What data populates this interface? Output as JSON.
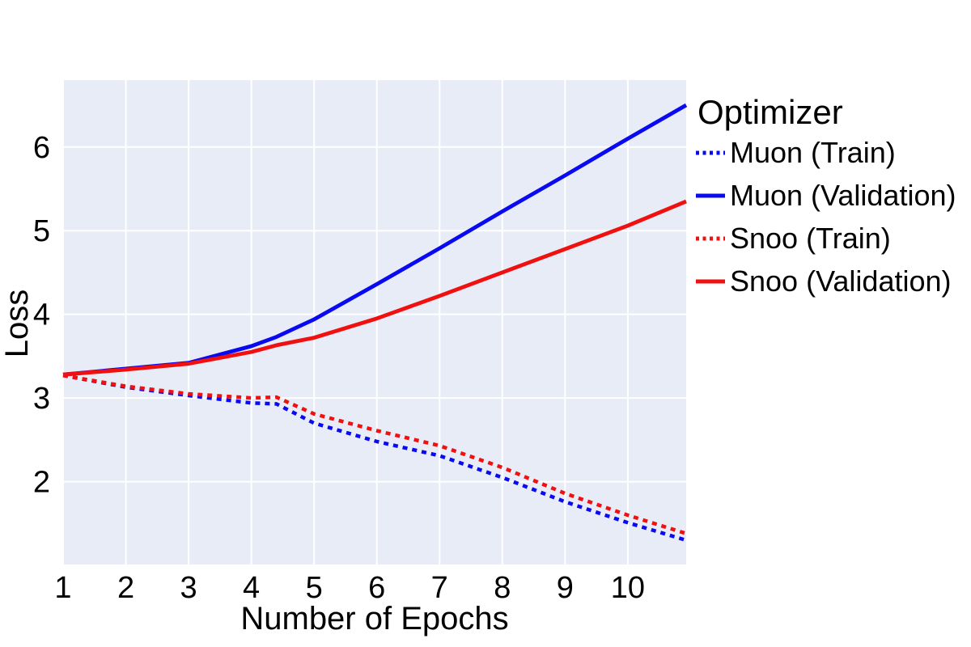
{
  "figure": {
    "background": "#ffffff",
    "plot_background": "#e8ecf6",
    "grid_color": "#ffffff"
  },
  "chart_data": {
    "type": "line",
    "title": "",
    "xlabel": "Number of Epochs",
    "ylabel": "Loss",
    "legend_title": "Optimizer",
    "legend_position": "right-outside-top",
    "grid": true,
    "xlim": [
      1,
      10.93
    ],
    "ylim": [
      1.01,
      6.8
    ],
    "x_ticks": [
      1,
      2,
      3,
      4,
      5,
      6,
      7,
      8,
      9,
      10
    ],
    "y_ticks": [
      2,
      3,
      4,
      5,
      6
    ],
    "x": [
      1,
      2,
      3,
      4,
      4.4,
      5,
      6,
      7,
      8,
      9,
      10,
      10.93
    ],
    "series": [
      {
        "name": "Muon (Train)",
        "color": "#0a0af0",
        "style": "dotted",
        "values": [
          3.27,
          3.13,
          3.03,
          2.94,
          2.93,
          2.7,
          2.48,
          2.31,
          2.05,
          1.76,
          1.51,
          1.3
        ]
      },
      {
        "name": "Muon (Validation)",
        "color": "#0a0af0",
        "style": "solid",
        "values": [
          3.28,
          3.35,
          3.42,
          3.62,
          3.73,
          3.94,
          4.36,
          4.79,
          5.23,
          5.66,
          6.1,
          6.5
        ]
      },
      {
        "name": "Snoo (Train)",
        "color": "#f01010",
        "style": "dotted",
        "values": [
          3.27,
          3.14,
          3.05,
          3.0,
          3.01,
          2.81,
          2.61,
          2.43,
          2.17,
          1.86,
          1.6,
          1.38
        ]
      },
      {
        "name": "Snoo (Validation)",
        "color": "#f01010",
        "style": "solid",
        "values": [
          3.28,
          3.34,
          3.41,
          3.55,
          3.63,
          3.72,
          3.95,
          4.22,
          4.5,
          4.78,
          5.06,
          5.35
        ]
      }
    ]
  }
}
